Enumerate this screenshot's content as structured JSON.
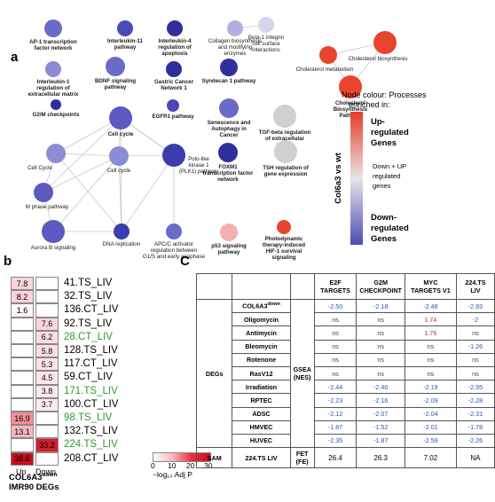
{
  "panels": {
    "a": "a",
    "b": "b",
    "c": "C"
  },
  "network": {
    "nodes": [
      {
        "id": "ap1",
        "label": [
          "AP-1 transcription",
          "factor network"
        ],
        "color": "#6a6ac8",
        "bold": true
      },
      {
        "id": "il11",
        "label": [
          "Interleukin-11",
          "pathway"
        ],
        "color": "#4a4ab8",
        "bold": true
      },
      {
        "id": "il4",
        "label": [
          "Interleukin-4",
          "regulation of",
          "apoptosis"
        ],
        "color": "#2f2f9c",
        "bold": true
      },
      {
        "id": "collagen",
        "label": [
          "Collagen biosynthesis",
          "and modifying",
          "enzymes"
        ],
        "color": "#b0b0dc",
        "bold": false
      },
      {
        "id": "beta1",
        "label": [
          "Beta-1 integrin",
          "cell surface",
          "interactions"
        ],
        "color": "#d5d5ea",
        "bold": false
      },
      {
        "id": "chol_met",
        "label": [
          "Cholesterol metabolism"
        ],
        "color": "#e8442e",
        "bold": false
      },
      {
        "id": "chol_bio",
        "label": [
          "Cholesterol biosynthesis"
        ],
        "color": "#e8442e",
        "bold": false
      },
      {
        "id": "chol_path",
        "label": [
          "Cholesterol",
          "Biosynthesis",
          "Pathway"
        ],
        "color": "#e8442e",
        "bold": true
      },
      {
        "id": "il1",
        "label": [
          "Interleukin-1",
          "regulation of",
          "extracellular matrix"
        ],
        "color": "#8c8cd4",
        "bold": true
      },
      {
        "id": "bdnf",
        "label": [
          "BDNF signaling",
          "pathway"
        ],
        "color": "#6a6ac8",
        "bold": true
      },
      {
        "id": "gastric",
        "label": [
          "Gastric Cancer",
          "Network 1"
        ],
        "color": "#2f2f9c",
        "bold": true
      },
      {
        "id": "synd",
        "label": [
          "Syndecan 1 pathway"
        ],
        "color": "#2f2f9c",
        "bold": true
      },
      {
        "id": "g2m",
        "label": [
          "G2/M checkpoints"
        ],
        "color": "#2f2f9c",
        "bold": true
      },
      {
        "id": "cellcycle_big",
        "label": [
          "Cell cycle"
        ],
        "color": "#5a5ac0",
        "bold": true
      },
      {
        "id": "egfr1",
        "label": [
          "EGFR1 pathway"
        ],
        "color": "#4a4ab8",
        "bold": true
      },
      {
        "id": "senes",
        "label": [
          "Senescence and",
          "Autophagy in",
          "Cancer"
        ],
        "color": "#6a6ac8",
        "bold": true
      },
      {
        "id": "tgfb",
        "label": [
          "TGF-beta regulation",
          "of extracellular",
          "matrix"
        ],
        "color": "#d0d0d0",
        "bold": true
      },
      {
        "id": "cycle1",
        "label": [
          "Cell Cycle"
        ],
        "color": "#8c8cd4",
        "bold": false
      },
      {
        "id": "cycle2",
        "label": [
          "Cell cycle"
        ],
        "color": "#8c8cd4",
        "bold": false
      },
      {
        "id": "plk1",
        "label": [
          "Polo-like",
          "kinase 1",
          "(PLK1) pathway"
        ],
        "color": "#3c3cae",
        "bold": false
      },
      {
        "id": "foxm1",
        "label": [
          "FOXM1",
          "transcription factor",
          "network"
        ],
        "color": "#2f2f9c",
        "bold": true
      },
      {
        "id": "tsh",
        "label": [
          "TSH regulation of",
          "gene expression"
        ],
        "color": "#d0d0d0",
        "bold": true
      },
      {
        "id": "mphase",
        "label": [
          "M phase pathway"
        ],
        "color": "#5a5ac0",
        "bold": false
      },
      {
        "id": "aurora",
        "label": [
          "Aurora B signaling"
        ],
        "color": "#5a5ac0",
        "bold": false
      },
      {
        "id": "dnarep",
        "label": [
          "DNA replication"
        ],
        "color": "#3c3cae",
        "bold": false
      },
      {
        "id": "apcc",
        "label": [
          "APC/C activator",
          "regulation between",
          "G1/S and early anaphase"
        ],
        "color": "#6a6ac8",
        "bold": false
      },
      {
        "id": "p53",
        "label": [
          "p53 signaling",
          "pathway"
        ],
        "color": "#f2b0b0",
        "bold": true
      },
      {
        "id": "photo",
        "label": [
          "Photodynamic",
          "therapy-induced",
          "HIF-1 survival",
          "signaling"
        ],
        "color": "#e8442e",
        "bold": true
      }
    ],
    "legend": {
      "title": [
        "Node colour: Processes",
        "enriched in:"
      ],
      "axis": "Col6a3  vs wt",
      "up": [
        "Up-",
        "regulated",
        "Genes"
      ],
      "mid": [
        "Down + UP",
        "regulated",
        "genes"
      ],
      "down": [
        "Down-",
        "regulated",
        "Genes"
      ]
    }
  },
  "heatmap": {
    "xlabels": [
      "Up",
      "Down"
    ],
    "title_main": "COL6A3",
    "title_sup": "down",
    "title_line2": "IMR90 DEGs",
    "colorbar_ticks": [
      "0",
      "10",
      "20",
      "30"
    ],
    "colorbar_label": "−log₁₀ Adj P",
    "rows": [
      {
        "label": "41.TS_LIV",
        "green": false,
        "up": "7.8",
        "down": ""
      },
      {
        "label": "32.TS_LIV",
        "green": false,
        "up": "8.2",
        "down": ""
      },
      {
        "label": "136.CT_LIV",
        "green": false,
        "up": "1.6",
        "down": ""
      },
      {
        "label": "92.TS_LIV",
        "green": false,
        "up": "",
        "down": "7.6"
      },
      {
        "label": "28.CT_LIV",
        "green": true,
        "up": "",
        "down": "6.2"
      },
      {
        "label": "128.TS_LIV",
        "green": false,
        "up": "",
        "down": "5.8"
      },
      {
        "label": "117.CT_LIV",
        "green": false,
        "up": "",
        "down": "5.3"
      },
      {
        "label": "59.CT_LIV",
        "green": false,
        "up": "",
        "down": "4.5"
      },
      {
        "label": "171.TS_LIV",
        "green": true,
        "up": "",
        "down": "3.8"
      },
      {
        "label": "100.CT_LIV",
        "green": false,
        "up": "",
        "down": "3.7"
      },
      {
        "label": "98.TS_LIV",
        "green": true,
        "up": "16.9",
        "down": ""
      },
      {
        "label": "132.TS_LIV",
        "green": false,
        "up": "13.1",
        "down": ""
      },
      {
        "label": "224.TS_LIV",
        "green": true,
        "up": "",
        "down": "33.2"
      },
      {
        "label": "208.CT_LIV",
        "green": false,
        "up": "38.6",
        "down": ""
      }
    ],
    "heat_values": {
      "up": [
        7.8,
        8.2,
        1.6,
        null,
        null,
        null,
        null,
        null,
        null,
        null,
        16.9,
        13.1,
        null,
        38.6
      ],
      "down": [
        null,
        null,
        null,
        7.6,
        6.2,
        5.8,
        5.3,
        4.5,
        3.8,
        3.7,
        null,
        null,
        33.2,
        null
      ]
    }
  },
  "table": {
    "headers": [
      "E2F TARGETS",
      "G2M CHECKPOINT",
      "MYC TARGETS V1",
      "224.TS LIV"
    ],
    "group_degs": "DEGs",
    "gsea": "GSEA (NES)",
    "group_sam": "SAM",
    "fet": "FET (FE)",
    "rows": [
      {
        "name": "COL6A3",
        "sup": "down",
        "vals": [
          "-2.50",
          "-2.18",
          "-2.48",
          "-2.83"
        ]
      },
      {
        "name": "Oligomycin",
        "sup": "",
        "vals": [
          "ns",
          "ns",
          "1.74",
          "-2"
        ]
      },
      {
        "name": "Antimycin",
        "sup": "",
        "vals": [
          "ns",
          "ns",
          "1.76",
          "ns"
        ]
      },
      {
        "name": "Bleomycin",
        "sup": "",
        "vals": [
          "ns",
          "ns",
          "ns",
          "-1.26"
        ]
      },
      {
        "name": "Rotenone",
        "sup": "",
        "vals": [
          "ns",
          "ns",
          "ns",
          "ns"
        ]
      },
      {
        "name": "RasV12",
        "sup": "",
        "vals": [
          "ns",
          "ns",
          "ns",
          "ns"
        ]
      },
      {
        "name": "Irradiation",
        "sup": "",
        "vals": [
          "-2.44",
          "-2.40",
          "-2.19",
          "-2.55"
        ]
      },
      {
        "name": "RPTEC",
        "sup": "",
        "vals": [
          "-2.23",
          "-2.16",
          "-2.09",
          "-2.28"
        ]
      },
      {
        "name": "ADSC",
        "sup": "",
        "vals": [
          "-2.12",
          "-2.07",
          "-2.04",
          "-2.31"
        ]
      },
      {
        "name": "HMVEC",
        "sup": "",
        "vals": [
          "-1.87",
          "-1.52",
          "-2.01",
          "-1.78"
        ]
      },
      {
        "name": "HUVEC",
        "sup": "",
        "vals": [
          "-2.35",
          "-1.87",
          "-2.59",
          "-2.26"
        ]
      }
    ],
    "sam_row": {
      "name": "224.TS LIV",
      "vals": [
        "26.4",
        "26.3",
        "7.02",
        "NA"
      ]
    }
  }
}
